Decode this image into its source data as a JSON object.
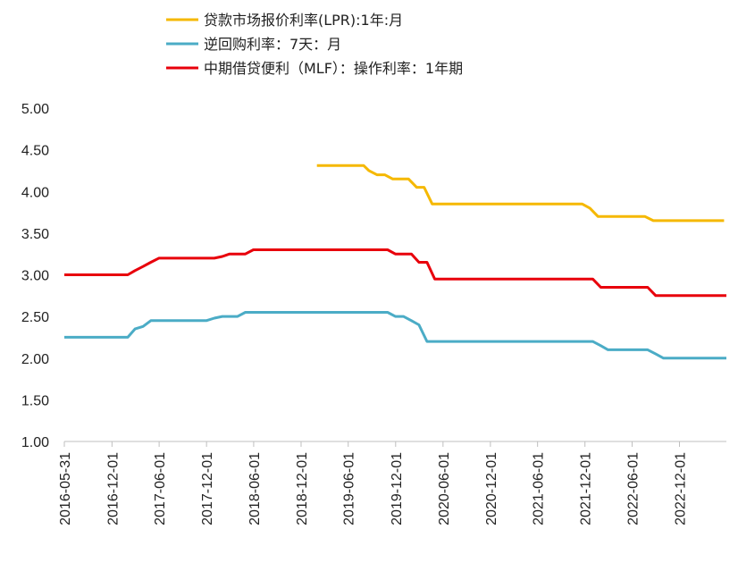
{
  "chart_data": {
    "type": "line",
    "title": "",
    "xlabel": "",
    "ylabel": "",
    "ylim": [
      1.0,
      5.0
    ],
    "xlim": [
      "2016-05-31",
      "2023-05-31"
    ],
    "yticks": [
      "1.00",
      "1.50",
      "2.00",
      "2.50",
      "3.00",
      "3.50",
      "4.00",
      "4.50",
      "5.00"
    ],
    "xticks": [
      "2016-05-31",
      "2016-12-01",
      "2017-06-01",
      "2017-12-01",
      "2018-06-01",
      "2018-12-01",
      "2019-06-01",
      "2019-12-01",
      "2020-06-01",
      "2020-12-01",
      "2021-06-01",
      "2021-12-01",
      "2022-06-01",
      "2022-12-01"
    ],
    "grid": false,
    "legend_position": "top",
    "series": [
      {
        "name": "贷款市场报价利率(LPR):1年:月",
        "color": "#F5B800",
        "points": [
          [
            "2019-01-31",
            4.31
          ],
          [
            "2019-07-31",
            4.31
          ],
          [
            "2019-08-20",
            4.25
          ],
          [
            "2019-09-20",
            4.2
          ],
          [
            "2019-10-20",
            4.2
          ],
          [
            "2019-11-20",
            4.15
          ],
          [
            "2019-12-20",
            4.15
          ],
          [
            "2020-01-20",
            4.15
          ],
          [
            "2020-02-20",
            4.05
          ],
          [
            "2020-03-20",
            4.05
          ],
          [
            "2020-04-20",
            3.85
          ],
          [
            "2021-11-20",
            3.85
          ],
          [
            "2021-12-20",
            3.8
          ],
          [
            "2022-01-20",
            3.7
          ],
          [
            "2022-07-20",
            3.7
          ],
          [
            "2022-08-22",
            3.65
          ],
          [
            "2023-05-22",
            3.65
          ]
        ]
      },
      {
        "name": "逆回购利率：7天：月",
        "color": "#4BACC6",
        "points": [
          [
            "2016-05-31",
            2.25
          ],
          [
            "2017-01-31",
            2.25
          ],
          [
            "2017-02-28",
            2.35
          ],
          [
            "2017-03-31",
            2.38
          ],
          [
            "2017-04-30",
            2.45
          ],
          [
            "2017-11-30",
            2.45
          ],
          [
            "2017-12-31",
            2.48
          ],
          [
            "2018-01-31",
            2.5
          ],
          [
            "2018-02-28",
            2.5
          ],
          [
            "2018-03-31",
            2.5
          ],
          [
            "2018-04-30",
            2.55
          ],
          [
            "2019-10-31",
            2.55
          ],
          [
            "2019-11-30",
            2.5
          ],
          [
            "2019-12-31",
            2.5
          ],
          [
            "2020-01-31",
            2.45
          ],
          [
            "2020-02-29",
            2.4
          ],
          [
            "2020-03-31",
            2.2
          ],
          [
            "2021-12-31",
            2.2
          ],
          [
            "2022-01-31",
            2.15
          ],
          [
            "2022-02-28",
            2.1
          ],
          [
            "2022-07-31",
            2.1
          ],
          [
            "2022-08-31",
            2.05
          ],
          [
            "2022-09-30",
            2.0
          ],
          [
            "2023-05-31",
            2.0
          ]
        ]
      },
      {
        "name": "中期借贷便利（MLF）：操作利率：1年期",
        "color": "#E8000B",
        "points": [
          [
            "2016-05-31",
            3.0
          ],
          [
            "2017-01-31",
            3.0
          ],
          [
            "2017-02-28",
            3.05
          ],
          [
            "2017-03-31",
            3.1
          ],
          [
            "2017-04-30",
            3.15
          ],
          [
            "2017-05-31",
            3.2
          ],
          [
            "2017-12-31",
            3.2
          ],
          [
            "2018-01-31",
            3.22
          ],
          [
            "2018-02-28",
            3.25
          ],
          [
            "2018-03-31",
            3.25
          ],
          [
            "2018-04-30",
            3.25
          ],
          [
            "2018-05-31",
            3.3
          ],
          [
            "2019-10-31",
            3.3
          ],
          [
            "2019-11-30",
            3.25
          ],
          [
            "2020-01-31",
            3.25
          ],
          [
            "2020-02-29",
            3.15
          ],
          [
            "2020-03-31",
            3.15
          ],
          [
            "2020-04-30",
            2.95
          ],
          [
            "2021-12-31",
            2.95
          ],
          [
            "2022-01-31",
            2.85
          ],
          [
            "2022-07-31",
            2.85
          ],
          [
            "2022-08-31",
            2.75
          ],
          [
            "2023-05-31",
            2.75
          ]
        ]
      }
    ]
  }
}
